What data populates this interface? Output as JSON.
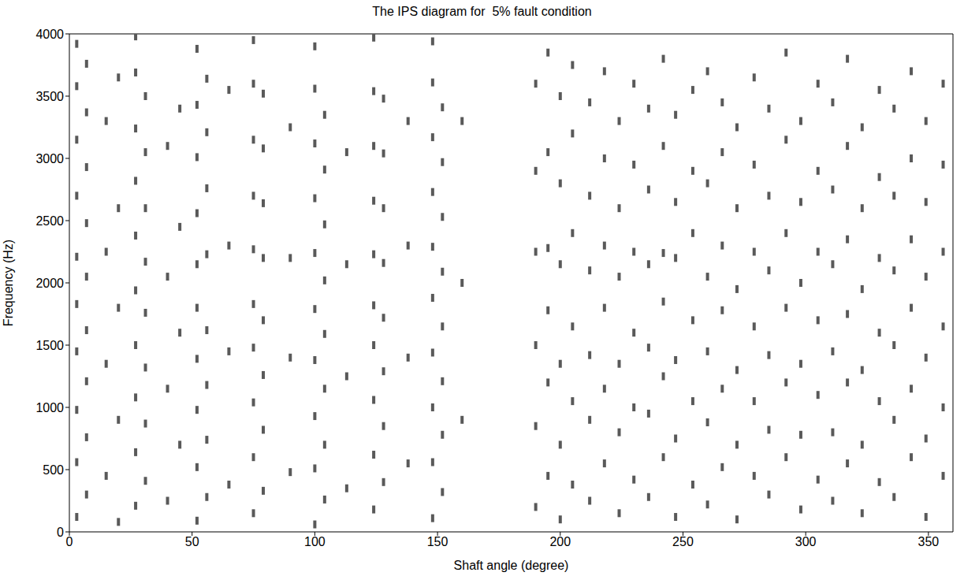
{
  "chart_data": {
    "type": "scatter",
    "title": "The IPS diagram for  5% fault condition",
    "x_label": "Shaft angle (degree)",
    "y_label": "Frequency (Hz)",
    "color": "#595959",
    "marker": "square",
    "grid": false,
    "xlim": [
      0,
      360
    ],
    "xticks": [
      0,
      50,
      100,
      150,
      200,
      250,
      300,
      350
    ],
    "ylim": [
      0,
      4000
    ],
    "yticks": [
      0,
      500,
      1000,
      1500,
      2000,
      2500,
      3000,
      3500,
      4000
    ],
    "x": [
      3,
      3,
      3,
      3,
      3,
      3,
      3,
      3,
      3,
      3,
      7,
      7,
      7,
      7,
      7,
      7,
      7,
      7,
      7,
      15,
      15,
      15,
      15,
      20,
      20,
      20,
      20,
      20,
      27,
      27,
      27,
      27,
      27,
      27,
      27,
      27,
      27,
      27,
      31,
      31,
      31,
      31,
      31,
      31,
      31,
      31,
      40,
      40,
      40,
      40,
      45,
      45,
      45,
      45,
      52,
      52,
      52,
      52,
      52,
      52,
      52,
      52,
      52,
      52,
      56,
      56,
      56,
      56,
      56,
      56,
      56,
      56,
      65,
      65,
      65,
      65,
      75,
      75,
      75,
      75,
      75,
      75,
      75,
      75,
      75,
      75,
      79,
      79,
      79,
      79,
      79,
      79,
      79,
      79,
      90,
      90,
      90,
      90,
      100,
      100,
      100,
      100,
      100,
      100,
      100,
      100,
      100,
      100,
      104,
      104,
      104,
      104,
      104,
      104,
      104,
      104,
      113,
      113,
      113,
      113,
      124,
      124,
      124,
      124,
      124,
      124,
      124,
      124,
      124,
      124,
      128,
      128,
      128,
      128,
      128,
      128,
      128,
      128,
      138,
      138,
      138,
      138,
      148,
      148,
      148,
      148,
      148,
      148,
      148,
      148,
      148,
      148,
      152,
      152,
      152,
      152,
      152,
      152,
      152,
      152,
      160,
      160,
      160,
      190,
      190,
      190,
      190,
      190,
      190,
      195,
      195,
      195,
      195,
      195,
      195,
      200,
      200,
      200,
      200,
      200,
      200,
      205,
      205,
      205,
      205,
      205,
      205,
      212,
      212,
      212,
      212,
      212,
      212,
      218,
      218,
      218,
      218,
      218,
      218,
      224,
      224,
      224,
      224,
      224,
      224,
      230,
      230,
      230,
      230,
      230,
      230,
      236,
      236,
      236,
      236,
      236,
      236,
      242,
      242,
      242,
      242,
      242,
      242,
      247,
      247,
      247,
      247,
      247,
      247,
      254,
      254,
      254,
      254,
      254,
      254,
      260,
      260,
      260,
      260,
      260,
      260,
      266,
      266,
      266,
      266,
      266,
      266,
      272,
      272,
      272,
      272,
      272,
      272,
      279,
      279,
      279,
      279,
      279,
      279,
      285,
      285,
      285,
      285,
      285,
      285,
      292,
      292,
      292,
      292,
      292,
      292,
      298,
      298,
      298,
      298,
      298,
      298,
      305,
      305,
      305,
      305,
      305,
      305,
      311,
      311,
      311,
      311,
      311,
      311,
      317,
      317,
      317,
      317,
      317,
      317,
      323,
      323,
      323,
      323,
      323,
      323,
      330,
      330,
      330,
      330,
      330,
      330,
      336,
      336,
      336,
      336,
      336,
      336,
      343,
      343,
      343,
      343,
      343,
      343,
      349,
      349,
      349,
      349,
      349,
      349,
      356,
      356,
      356,
      356,
      356,
      356
    ],
    "values": [
      120,
      560,
      980,
      1450,
      1830,
      2210,
      2700,
      3150,
      3580,
      3920,
      300,
      760,
      1210,
      1620,
      2050,
      2480,
      2930,
      3370,
      3760,
      450,
      1350,
      2250,
      3300,
      80,
      900,
      1800,
      2600,
      3650,
      210,
      640,
      1080,
      1500,
      1940,
      2380,
      2820,
      3240,
      3690,
      3980,
      410,
      870,
      1320,
      1760,
      2170,
      2600,
      3050,
      3500,
      250,
      1150,
      2050,
      3100,
      700,
      1600,
      2450,
      3400,
      90,
      520,
      980,
      1390,
      1800,
      2150,
      2560,
      3010,
      3430,
      3880,
      280,
      740,
      1180,
      1620,
      2230,
      2760,
      3210,
      3640,
      380,
      1450,
      2300,
      3550,
      150,
      600,
      1040,
      1480,
      1830,
      2270,
      2700,
      3150,
      3600,
      3950,
      330,
      820,
      1260,
      1700,
      2200,
      2640,
      3080,
      3520,
      480,
      1400,
      2200,
      3250,
      60,
      510,
      930,
      1380,
      1790,
      2240,
      2680,
      3120,
      3560,
      3900,
      260,
      700,
      1150,
      1590,
      2020,
      2470,
      2910,
      3350,
      350,
      1250,
      2150,
      3050,
      180,
      620,
      1060,
      1500,
      1820,
      2230,
      2660,
      3100,
      3540,
      3970,
      400,
      850,
      1290,
      1720,
      2160,
      2600,
      3040,
      3480,
      550,
      1400,
      2300,
      3300,
      110,
      560,
      1000,
      1440,
      1880,
      2290,
      2730,
      3170,
      3610,
      3940,
      320,
      780,
      1210,
      1650,
      2090,
      2530,
      2970,
      3410,
      900,
      2000,
      3300,
      200,
      850,
      1500,
      2250,
      2900,
      3600,
      450,
      1200,
      1780,
      2280,
      3050,
      3850,
      100,
      700,
      1350,
      2150,
      2800,
      3500,
      380,
      1050,
      1650,
      2400,
      3200,
      3750,
      250,
      900,
      1420,
      2100,
      2700,
      3450,
      550,
      1150,
      1800,
      2300,
      3000,
      3700,
      150,
      800,
      1350,
      2050,
      2600,
      3300,
      420,
      1000,
      1600,
      2250,
      2950,
      3600,
      280,
      950,
      1480,
      2150,
      2750,
      3400,
      600,
      1250,
      1850,
      2240,
      3100,
      3800,
      120,
      750,
      1380,
      2200,
      2650,
      3350,
      380,
      1050,
      1700,
      2400,
      2900,
      3550,
      220,
      880,
      1450,
      2050,
      2800,
      3700,
      520,
      1150,
      1780,
      2300,
      3050,
      3450,
      100,
      700,
      1300,
      1950,
      2600,
      3250,
      450,
      1050,
      1650,
      2250,
      2950,
      3650,
      300,
      820,
      1420,
      2100,
      2700,
      3400,
      600,
      1200,
      1800,
      2400,
      3150,
      3850,
      180,
      780,
      1350,
      2000,
      2650,
      3300,
      420,
      1100,
      1700,
      2250,
      2900,
      3600,
      250,
      800,
      1450,
      2150,
      2750,
      3450,
      550,
      1200,
      1750,
      2350,
      3100,
      3800,
      150,
      700,
      1300,
      1950,
      2600,
      3250,
      400,
      1050,
      1600,
      2200,
      2850,
      3550,
      280,
      900,
      1500,
      2100,
      2700,
      3400,
      600,
      1150,
      1800,
      2350,
      3000,
      3700,
      120,
      750,
      1400,
      2050,
      2650,
      3300,
      450,
      1000,
      1650,
      2250,
      2950,
      3600
    ]
  }
}
